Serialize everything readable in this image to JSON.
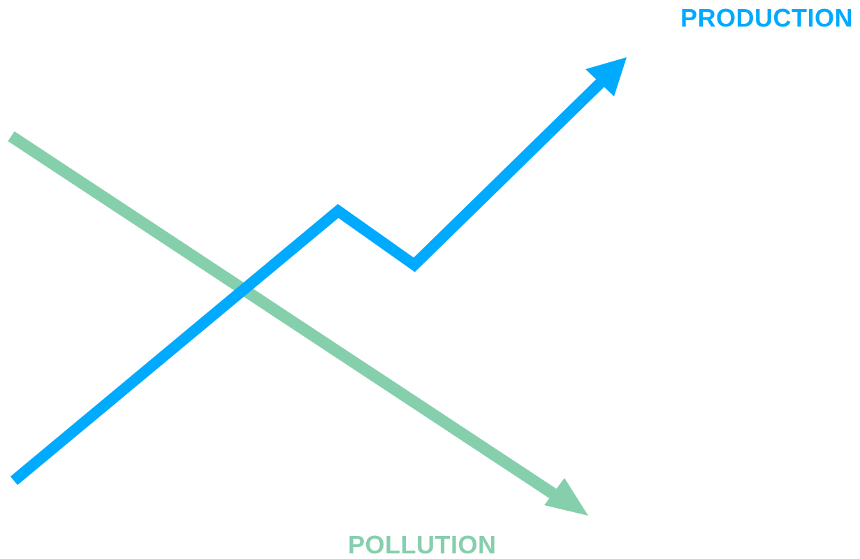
{
  "labels": {
    "production": "PRODUCTION",
    "pollution": "POLLUTION"
  },
  "colors": {
    "production": "#00aaff",
    "pollution": "#86cfac",
    "background": "#ffffff"
  },
  "arrows": {
    "production": {
      "direction": "up-right",
      "shape": "zigzag-rising"
    },
    "pollution": {
      "direction": "down-right",
      "shape": "straight-falling"
    }
  }
}
